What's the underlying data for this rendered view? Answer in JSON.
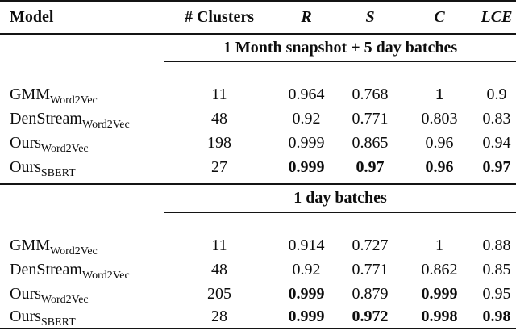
{
  "page": {
    "background": "#ffffff",
    "text_color": "#0d0d0d",
    "rule_color": "#141414"
  },
  "table": {
    "header": {
      "model": "Model",
      "clusters": "# Clusters",
      "r": "R",
      "s": "S",
      "c": "C",
      "lce": "LCE"
    },
    "sections": [
      {
        "title": "1 Month snapshot + 5 day batches",
        "rows": [
          {
            "model": "GMM",
            "model_sub": "Word2Vec",
            "clusters": "11",
            "r": "0.964",
            "s": "0.768",
            "c": "1",
            "lce": "0.9"
          },
          {
            "model": "DenStream",
            "model_sub": "Word2Vec",
            "clusters": "48",
            "r": "0.92",
            "s": "0.771",
            "c": "0.803",
            "lce": "0.83"
          },
          {
            "model": "Ours",
            "model_sub": "Word2Vec",
            "clusters": "198",
            "r": "0.999",
            "s": "0.865",
            "c": "0.96",
            "lce": "0.94"
          },
          {
            "model": "Ours",
            "model_sub": "SBERT",
            "clusters": "27",
            "r": "0.999",
            "s": "0.97",
            "c": "0.96",
            "lce": "0.97"
          }
        ],
        "bold_cells": [
          [
            0,
            "c"
          ],
          [
            3,
            "r"
          ],
          [
            3,
            "s"
          ],
          [
            3,
            "c"
          ],
          [
            3,
            "lce"
          ]
        ]
      },
      {
        "title": "1 day batches",
        "rows": [
          {
            "model": "GMM",
            "model_sub": "Word2Vec",
            "clusters": "11",
            "r": "0.914",
            "s": "0.727",
            "c": "1",
            "lce": "0.88"
          },
          {
            "model": "DenStream",
            "model_sub": "Word2Vec",
            "clusters": "48",
            "r": "0.92",
            "s": "0.771",
            "c": "0.862",
            "lce": "0.85"
          },
          {
            "model": "Ours",
            "model_sub": "Word2Vec",
            "clusters": "205",
            "r": "0.999",
            "s": "0.879",
            "c": "0.999",
            "lce": "0.95"
          },
          {
            "model": "Ours",
            "model_sub": "SBERT",
            "clusters": "28",
            "r": "0.999",
            "s": "0.972",
            "c": "0.998",
            "lce": "0.98"
          }
        ],
        "bold_cells": [
          [
            2,
            "r"
          ],
          [
            2,
            "c"
          ],
          [
            3,
            "r"
          ],
          [
            3,
            "s"
          ],
          [
            3,
            "c"
          ],
          [
            3,
            "lce"
          ]
        ]
      }
    ]
  }
}
